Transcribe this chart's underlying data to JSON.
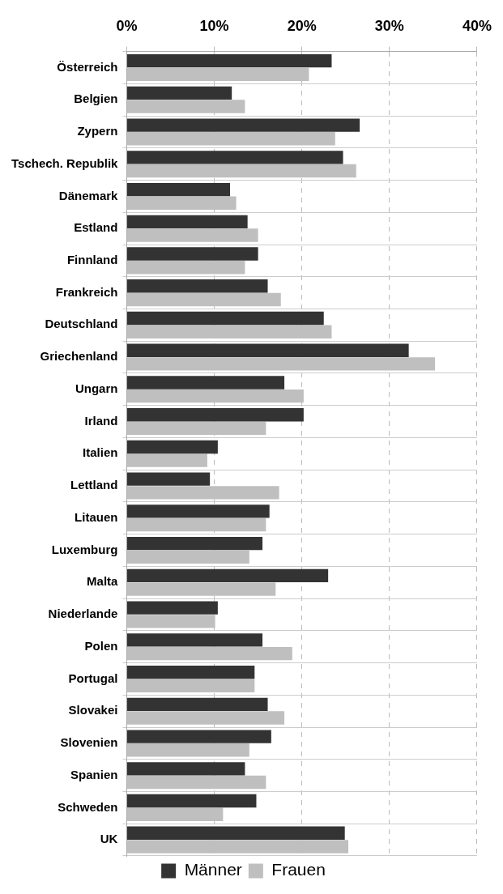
{
  "chart_data": {
    "type": "bar",
    "orientation": "horizontal",
    "categories": [
      "Österreich",
      "Belgien",
      "Zypern",
      "Tschech. Republik",
      "Dänemark",
      "Estland",
      "Finnland",
      "Frankreich",
      "Deutschland",
      "Griechenland",
      "Ungarn",
      "Irland",
      "Italien",
      "Lettland",
      "Litauen",
      "Luxemburg",
      "Malta",
      "Niederlande",
      "Polen",
      "Portugal",
      "Slovakei",
      "Slovenien",
      "Spanien",
      "Schweden",
      "UK"
    ],
    "series": [
      {
        "name": "Männer",
        "color": "#333333",
        "values": [
          23.4,
          12.0,
          26.6,
          24.7,
          11.8,
          13.8,
          15.0,
          16.1,
          22.5,
          32.2,
          18.0,
          20.2,
          10.4,
          9.5,
          16.3,
          15.5,
          23.0,
          10.4,
          15.5,
          14.6,
          16.1,
          16.5,
          13.5,
          14.8,
          24.9
        ]
      },
      {
        "name": "Frauen",
        "color": "#bfbfbf",
        "values": [
          20.8,
          13.5,
          23.8,
          26.2,
          12.5,
          15.0,
          13.5,
          17.6,
          23.4,
          35.2,
          20.2,
          15.9,
          9.2,
          17.4,
          15.9,
          14.0,
          17.0,
          10.1,
          18.9,
          14.6,
          18.0,
          14.0,
          15.9,
          11.0,
          25.3
        ]
      }
    ],
    "xlim": [
      0,
      40
    ],
    "xticks": [
      {
        "value": 0,
        "label": "0%"
      },
      {
        "value": 10,
        "label": "10%"
      },
      {
        "value": 20,
        "label": "20%"
      },
      {
        "value": 30,
        "label": "30%"
      },
      {
        "value": 40,
        "label": "40%"
      }
    ],
    "grid": true,
    "legend": "bottom"
  }
}
